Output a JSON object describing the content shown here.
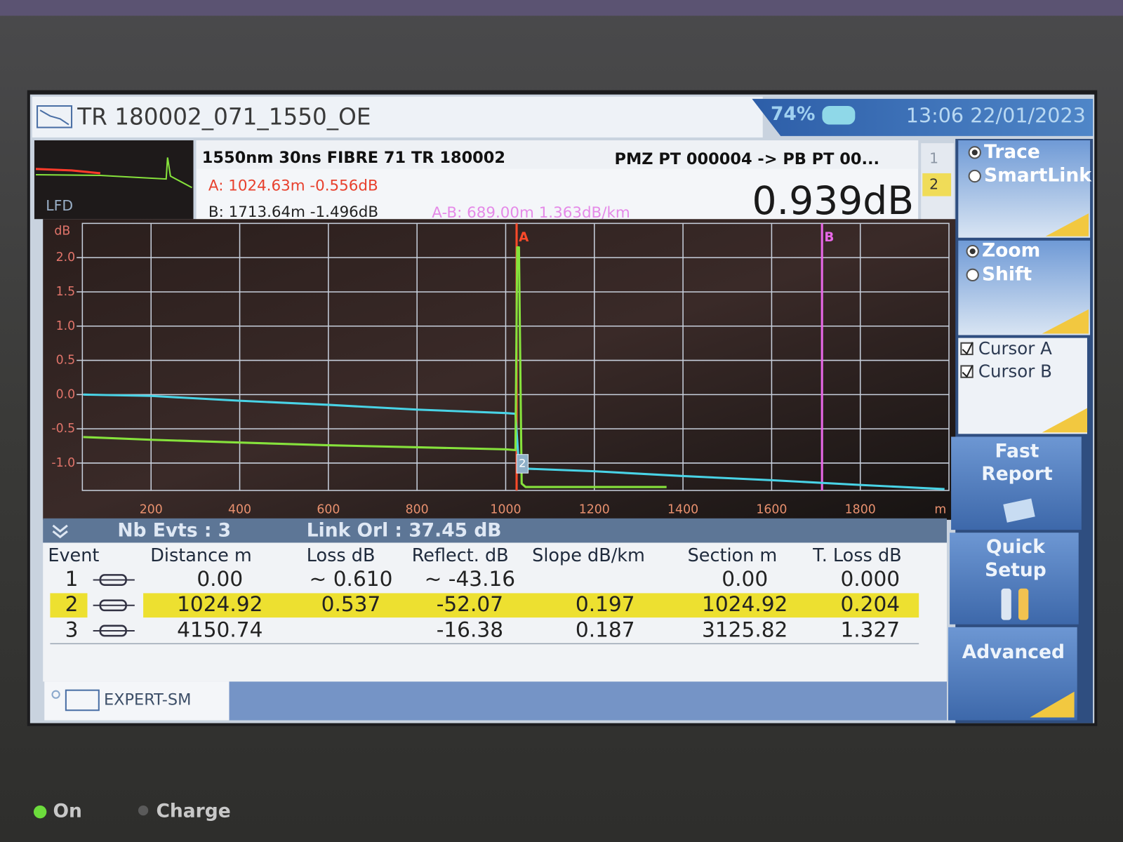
{
  "header": {
    "title": "TR 180002_071_1550_OE",
    "battery": "74%",
    "datetime": "13:06  22/01/2023"
  },
  "thumbnail": {
    "label": "LFD"
  },
  "info": {
    "line1": "1550nm  30ns  FIBRE  71  TR 180002",
    "route": "PMZ PT 000004 -> PB PT 00...",
    "cursor_a": "A: 1024.63m -0.556dB",
    "cursor_b": "B: 1713.64m -1.496dB",
    "a_b": "A-B: 689.00m 1.363dB/km",
    "result": "0.939dB",
    "tabs": [
      "1",
      "2"
    ]
  },
  "chart_data": {
    "type": "line",
    "y_unit": "dB",
    "x_unit": "m",
    "xlim": [
      45,
      2000
    ],
    "ylim": [
      -1.4,
      2.5
    ],
    "xticks": [
      200,
      400,
      600,
      800,
      1000,
      1200,
      1400,
      1600,
      1800
    ],
    "yticks": [
      {
        "value": 2,
        "label": "2.0"
      },
      1.5,
      {
        "value": 1,
        "label": "1.0"
      },
      0.5,
      {
        "value": 0,
        "label": "0.0"
      },
      -0.5,
      {
        "value": -1,
        "label": "-1.0"
      }
    ],
    "grid": true,
    "series": [
      {
        "color": "#49d3e6",
        "x": [
          47,
          200,
          400,
          600,
          800,
          1000,
          1022,
          1030,
          1040,
          1200,
          1400,
          1600,
          1800,
          1990
        ],
        "values": [
          0.0,
          -0.02,
          -0.09,
          -0.15,
          -0.22,
          -0.27,
          -0.28,
          -1.05,
          -1.08,
          -1.12,
          -1.19,
          -1.25,
          -1.32,
          -1.38
        ]
      },
      {
        "color": "#86e23c",
        "x": [
          47,
          200,
          400,
          600,
          800,
          1000,
          1022,
          1026,
          1030,
          1036,
          1045,
          1200,
          1363
        ],
        "values": [
          -0.62,
          -0.66,
          -0.7,
          -0.74,
          -0.77,
          -0.8,
          -0.81,
          2.15,
          2.15,
          -1.3,
          -1.35,
          -1.35,
          -1.35
        ]
      }
    ],
    "cursors": [
      {
        "label": "A",
        "x": 1024.63,
        "color": "#ff4a2a"
      },
      {
        "label": "B",
        "x": 1713.64,
        "color": "#e868e8"
      }
    ],
    "event_markers": [
      {
        "label": "2",
        "x": 1024.92,
        "y": -1.0
      }
    ]
  },
  "events": {
    "count": "Nb Evts : 3",
    "link_orl": "Link Orl :  37.45 dB",
    "columns": [
      "Event",
      "Distance  m",
      "Loss dB",
      "Reflect. dB",
      "Slope  dB/km",
      "Section m",
      "T. Loss dB"
    ],
    "rows": [
      {
        "event": "1",
        "distance": "0.00",
        "loss": "~  0.610",
        "reflect": "~ -43.16",
        "section": "0.00",
        "tloss": "0.000"
      },
      {
        "event": "2",
        "distance": "1024.92",
        "loss": "0.537",
        "reflect": "-52.07",
        "slope": "0.197",
        "section": "1024.92",
        "tloss": "0.204",
        "highlight": true
      },
      {
        "event": "3",
        "distance": "4150.74",
        "reflect": "-16.38",
        "slope": "0.187",
        "section": "3125.82",
        "tloss": "1.327"
      }
    ]
  },
  "bottom_tab": "EXPERT-SM",
  "side_panel": {
    "trace": "Trace",
    "smartlink": "SmartLink",
    "zoom": "Zoom",
    "shift": "Shift",
    "cursor_a": "Cursor A",
    "cursor_b": "Cursor B",
    "fast_report": [
      "Fast",
      "Report"
    ],
    "quick_setup": [
      "Quick",
      "Setup"
    ],
    "advanced": "Advanced"
  },
  "device": {
    "on": "On",
    "charge": "Charge"
  }
}
